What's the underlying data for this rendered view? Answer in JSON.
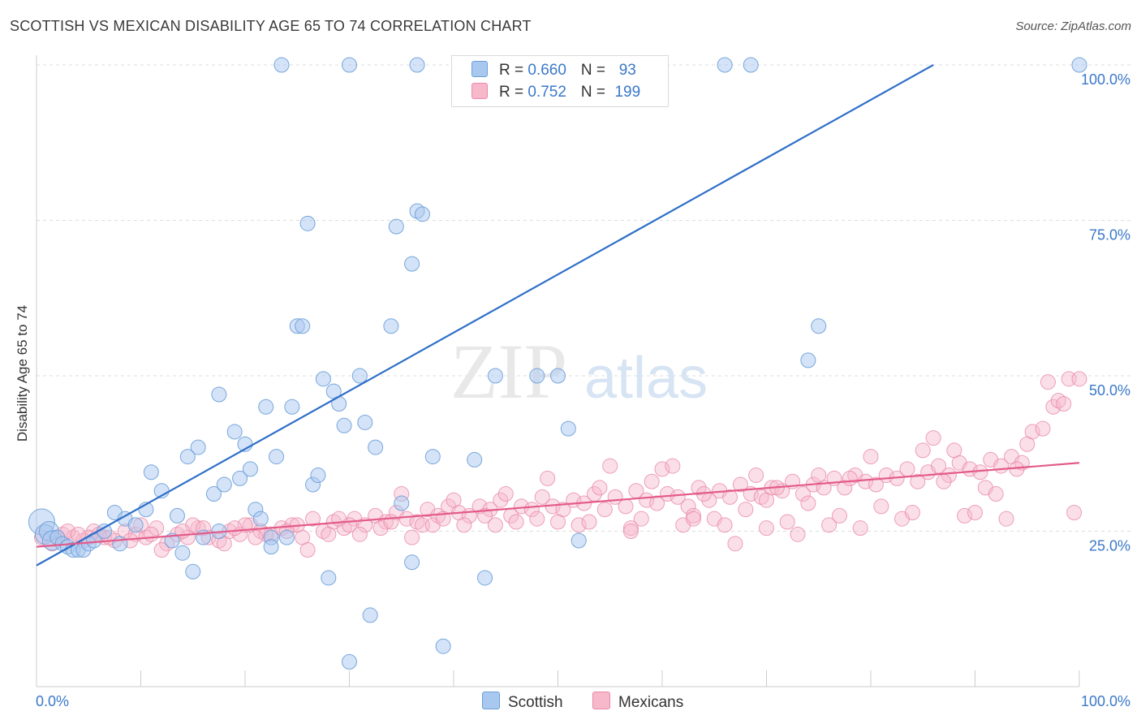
{
  "header": {
    "title": "SCOTTISH VS MEXICAN DISABILITY AGE 65 TO 74 CORRELATION CHART",
    "source": "Source: ZipAtlas.com"
  },
  "watermark": {
    "zip": "ZIP",
    "atlas": "atlas"
  },
  "legend": {
    "rows": [
      {
        "r_label": "R = ",
        "r_value": "0.660",
        "n_label": "N = ",
        "n_value": "93",
        "color": "#a9c8f0"
      },
      {
        "r_label": "R = ",
        "r_value": "0.752",
        "n_label": "N = ",
        "n_value": "199",
        "color": "#f7b8cc"
      }
    ]
  },
  "colors": {
    "scottish_fill": "#a9c8f0",
    "scottish_stroke": "#6a9fd8",
    "scottish_line": "#2f6fc9",
    "mexican_fill": "#f7b8cc",
    "mexican_stroke": "#e98aa8",
    "mexican_line": "#e35b8a",
    "axis_text": "#3a78c9",
    "grid": "#dddddd"
  },
  "chart_data": {
    "type": "scatter",
    "title": "SCOTTISH VS MEXICAN DISABILITY AGE 65 TO 74 CORRELATION CHART",
    "xlabel": "",
    "ylabel": "Disability Age 65 to 74",
    "xlim": [
      0,
      100
    ],
    "ylim": [
      0,
      100
    ],
    "x_tick_labels": [
      "0.0%",
      "100.0%"
    ],
    "y_ticks": [
      25,
      50,
      75,
      100
    ],
    "y_tick_labels": [
      "25.0%",
      "50.0%",
      "75.0%",
      "100.0%"
    ],
    "grid": "horizontal dashed",
    "legend_position": "top-center",
    "series": [
      {
        "name": "Scottish",
        "r": 0.66,
        "n": 93,
        "trend": {
          "x": [
            0,
            86
          ],
          "y": [
            19.5,
            100
          ]
        },
        "points": [
          [
            0.5,
            26.5
          ],
          [
            0.8,
            24.5
          ],
          [
            1.2,
            25.0
          ],
          [
            1.5,
            23.5
          ],
          [
            2.0,
            24.0
          ],
          [
            2.5,
            23.0
          ],
          [
            3.0,
            22.5
          ],
          [
            3.5,
            22.0
          ],
          [
            4.0,
            22.0
          ],
          [
            4.5,
            22.0
          ],
          [
            5.0,
            23.0
          ],
          [
            5.5,
            23.5
          ],
          [
            6.5,
            25.0
          ],
          [
            7.5,
            28.0
          ],
          [
            8.0,
            23.0
          ],
          [
            8.5,
            27.0
          ],
          [
            9.5,
            26.0
          ],
          [
            10.5,
            28.5
          ],
          [
            11.0,
            34.5
          ],
          [
            12.0,
            31.5
          ],
          [
            13.0,
            23.5
          ],
          [
            13.5,
            27.5
          ],
          [
            14.0,
            21.5
          ],
          [
            14.5,
            37.0
          ],
          [
            15.0,
            18.5
          ],
          [
            15.5,
            38.5
          ],
          [
            16.0,
            24.0
          ],
          [
            17.0,
            31.0
          ],
          [
            17.5,
            25.0
          ],
          [
            17.5,
            47.0
          ],
          [
            18.0,
            32.5
          ],
          [
            19.0,
            41.0
          ],
          [
            19.5,
            33.5
          ],
          [
            20.0,
            39.0
          ],
          [
            20.5,
            35.0
          ],
          [
            21.0,
            28.5
          ],
          [
            21.5,
            27.0
          ],
          [
            22.0,
            45.0
          ],
          [
            22.5,
            24.0
          ],
          [
            22.5,
            22.5
          ],
          [
            23.0,
            37.0
          ],
          [
            24.0,
            24.0
          ],
          [
            24.5,
            45.0
          ],
          [
            25.0,
            58.0
          ],
          [
            25.5,
            58.0
          ],
          [
            26.0,
            74.5
          ],
          [
            26.5,
            32.5
          ],
          [
            27.0,
            34.0
          ],
          [
            27.5,
            49.5
          ],
          [
            28.0,
            17.5
          ],
          [
            28.5,
            47.5
          ],
          [
            29.0,
            45.5
          ],
          [
            29.5,
            42.0
          ],
          [
            31.0,
            50.0
          ],
          [
            31.5,
            42.5
          ],
          [
            32.0,
            11.5
          ],
          [
            32.5,
            38.5
          ],
          [
            30.0,
            4.0
          ],
          [
            34.0,
            58.0
          ],
          [
            34.5,
            74.0
          ],
          [
            35.0,
            29.5
          ],
          [
            36.0,
            20.0
          ],
          [
            36.0,
            68.0
          ],
          [
            36.5,
            76.5
          ],
          [
            37.0,
            76.0
          ],
          [
            38.0,
            37.0
          ],
          [
            39.0,
            6.5
          ],
          [
            42.0,
            36.5
          ],
          [
            43.0,
            17.5
          ],
          [
            44.0,
            50.0
          ],
          [
            48.0,
            50.0
          ],
          [
            50.0,
            50.0
          ],
          [
            51.0,
            41.5
          ],
          [
            52.0,
            23.5
          ],
          [
            74.0,
            52.5
          ],
          [
            75.0,
            58.0
          ],
          [
            23.5,
            100
          ],
          [
            30.0,
            100
          ],
          [
            36.5,
            100
          ],
          [
            43.5,
            100
          ],
          [
            59.5,
            100
          ],
          [
            66.0,
            100
          ],
          [
            68.5,
            100
          ],
          [
            100,
            100
          ]
        ]
      },
      {
        "name": "Mexicans",
        "r": 0.752,
        "n": 199,
        "trend": {
          "x": [
            0,
            100
          ],
          "y": [
            22.5,
            36.0
          ]
        },
        "points": [
          [
            0.5,
            24.0
          ],
          [
            1.5,
            23.0
          ],
          [
            2.5,
            24.5
          ],
          [
            3.5,
            24.0
          ],
          [
            4.5,
            23.5
          ],
          [
            5.5,
            25.0
          ],
          [
            6.5,
            24.0
          ],
          [
            7.5,
            23.5
          ],
          [
            8.5,
            25.0
          ],
          [
            9.5,
            24.5
          ],
          [
            10.5,
            24.0
          ],
          [
            11.5,
            25.5
          ],
          [
            12.5,
            23.0
          ],
          [
            13.5,
            24.5
          ],
          [
            14.5,
            24.0
          ],
          [
            15.5,
            25.5
          ],
          [
            16.5,
            24.0
          ],
          [
            17.5,
            23.5
          ],
          [
            18.5,
            25.0
          ],
          [
            19.5,
            24.5
          ],
          [
            20.5,
            26.0
          ],
          [
            21.5,
            25.0
          ],
          [
            22.5,
            24.5
          ],
          [
            23.5,
            25.5
          ],
          [
            24.5,
            26.0
          ],
          [
            25.5,
            24.0
          ],
          [
            26.5,
            27.0
          ],
          [
            27.5,
            25.0
          ],
          [
            28.5,
            26.5
          ],
          [
            29.5,
            25.5
          ],
          [
            30.5,
            27.0
          ],
          [
            31.5,
            26.0
          ],
          [
            32.5,
            27.5
          ],
          [
            33.5,
            26.5
          ],
          [
            34.5,
            28.0
          ],
          [
            35.5,
            27.0
          ],
          [
            36.5,
            26.5
          ],
          [
            37.5,
            28.5
          ],
          [
            38.5,
            27.5
          ],
          [
            39.5,
            29.0
          ],
          [
            40.5,
            28.0
          ],
          [
            41.5,
            27.5
          ],
          [
            42.5,
            29.0
          ],
          [
            43.5,
            28.5
          ],
          [
            44.5,
            30.0
          ],
          [
            45.5,
            27.5
          ],
          [
            46.5,
            29.0
          ],
          [
            47.5,
            28.5
          ],
          [
            48.5,
            30.5
          ],
          [
            49.5,
            29.0
          ],
          [
            50.5,
            28.5
          ],
          [
            51.5,
            30.0
          ],
          [
            52.5,
            29.5
          ],
          [
            53.5,
            31.0
          ],
          [
            54.5,
            28.5
          ],
          [
            55.5,
            30.5
          ],
          [
            56.5,
            29.0
          ],
          [
            57.5,
            31.5
          ],
          [
            58.5,
            30.0
          ],
          [
            59.5,
            29.5
          ],
          [
            60.5,
            31.0
          ],
          [
            61.5,
            30.5
          ],
          [
            62.5,
            29.0
          ],
          [
            63.5,
            32.0
          ],
          [
            64.5,
            30.0
          ],
          [
            65.5,
            31.5
          ],
          [
            66.5,
            30.5
          ],
          [
            67.5,
            32.5
          ],
          [
            68.5,
            31.0
          ],
          [
            69.5,
            30.5
          ],
          [
            70.5,
            32.0
          ],
          [
            71.5,
            31.5
          ],
          [
            72.5,
            33.0
          ],
          [
            73.5,
            31.0
          ],
          [
            74.5,
            32.5
          ],
          [
            75.5,
            32.0
          ],
          [
            76.5,
            33.5
          ],
          [
            77.5,
            32.0
          ],
          [
            78.5,
            34.0
          ],
          [
            79.5,
            33.0
          ],
          [
            80.5,
            32.5
          ],
          [
            81.5,
            34.0
          ],
          [
            82.5,
            33.5
          ],
          [
            83.5,
            35.0
          ],
          [
            84.5,
            33.0
          ],
          [
            85.5,
            34.5
          ],
          [
            86.5,
            35.5
          ],
          [
            87.5,
            34.0
          ],
          [
            88.5,
            36.0
          ],
          [
            89.5,
            35.0
          ],
          [
            90.5,
            34.5
          ],
          [
            91.5,
            36.5
          ],
          [
            92.5,
            35.5
          ],
          [
            93.5,
            37.0
          ],
          [
            94.5,
            36.0
          ],
          [
            95.5,
            41.0
          ],
          [
            96.5,
            41.5
          ],
          [
            97.0,
            49.0
          ],
          [
            97.5,
            45.0
          ],
          [
            98.0,
            46.0
          ],
          [
            98.5,
            45.5
          ],
          [
            99.0,
            49.5
          ],
          [
            100,
            49.5
          ],
          [
            99.5,
            28.0
          ],
          [
            86.0,
            40.0
          ],
          [
            80.0,
            37.0
          ],
          [
            75.0,
            34.0
          ],
          [
            70.0,
            30.0
          ],
          [
            65.0,
            27.0
          ],
          [
            60.0,
            35.0
          ],
          [
            55.0,
            35.5
          ],
          [
            50.0,
            26.5
          ],
          [
            45.0,
            31.0
          ],
          [
            40.0,
            30.0
          ],
          [
            35.0,
            31.0
          ],
          [
            30.0,
            26.0
          ],
          [
            25.0,
            26.0
          ],
          [
            20.0,
            26.0
          ],
          [
            15.0,
            26.0
          ],
          [
            10.0,
            26.0
          ],
          [
            5.0,
            24.0
          ],
          [
            3.0,
            25.0
          ],
          [
            2.0,
            24.0
          ],
          [
            12.0,
            22.0
          ],
          [
            18.0,
            23.0
          ],
          [
            22.0,
            24.5
          ],
          [
            26.0,
            22.0
          ],
          [
            33.0,
            25.5
          ],
          [
            37.0,
            26.0
          ],
          [
            41.0,
            26.0
          ],
          [
            46.0,
            26.5
          ],
          [
            52.0,
            26.0
          ],
          [
            57.0,
            25.5
          ],
          [
            62.0,
            26.0
          ],
          [
            66.0,
            26.0
          ],
          [
            70.0,
            25.5
          ],
          [
            73.0,
            24.5
          ],
          [
            76.0,
            26.0
          ],
          [
            79.0,
            25.5
          ],
          [
            83.0,
            27.0
          ],
          [
            89.0,
            27.5
          ],
          [
            93.0,
            27.0
          ],
          [
            90.0,
            28.0
          ],
          [
            84.0,
            28.0
          ],
          [
            77.0,
            27.5
          ],
          [
            72.0,
            26.5
          ],
          [
            68.0,
            28.5
          ],
          [
            63.0,
            27.5
          ],
          [
            58.0,
            27.0
          ],
          [
            53.0,
            26.5
          ],
          [
            48.0,
            27.0
          ],
          [
            43.0,
            27.5
          ],
          [
            38.0,
            26.0
          ],
          [
            34.0,
            26.5
          ],
          [
            29.0,
            27.0
          ],
          [
            24.0,
            25.0
          ],
          [
            19.0,
            25.5
          ],
          [
            14.0,
            25.0
          ],
          [
            9.0,
            23.5
          ],
          [
            6.0,
            24.5
          ],
          [
            67.0,
            23.0
          ],
          [
            57.0,
            25.0
          ],
          [
            63.0,
            27.0
          ],
          [
            61.0,
            35.5
          ],
          [
            71.0,
            32.0
          ],
          [
            78.0,
            33.5
          ],
          [
            85.0,
            38.0
          ],
          [
            88.0,
            38.0
          ],
          [
            91.0,
            32.0
          ],
          [
            94.0,
            35.0
          ],
          [
            95.0,
            39.0
          ],
          [
            92.0,
            31.0
          ],
          [
            87.0,
            33.0
          ],
          [
            81.0,
            29.0
          ],
          [
            74.0,
            29.5
          ],
          [
            69.0,
            34.0
          ],
          [
            64.0,
            31.0
          ],
          [
            59.0,
            33.0
          ],
          [
            54.0,
            32.0
          ],
          [
            49.0,
            33.5
          ],
          [
            44.0,
            26.0
          ],
          [
            39.0,
            27.0
          ],
          [
            36.0,
            24.0
          ],
          [
            31.0,
            24.5
          ],
          [
            28.0,
            24.5
          ],
          [
            21.0,
            24.0
          ],
          [
            16.0,
            25.5
          ],
          [
            11.0,
            24.5
          ],
          [
            7.0,
            24.0
          ],
          [
            4.0,
            24.5
          ]
        ]
      }
    ]
  },
  "bottom_legend": {
    "items": [
      "Scottish",
      "Mexicans"
    ]
  }
}
